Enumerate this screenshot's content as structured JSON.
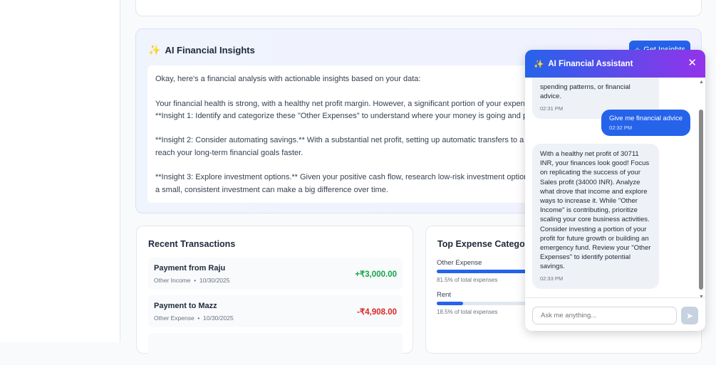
{
  "insights": {
    "title": "AI Financial Insights",
    "button": "Get Insights",
    "text": "Okay, here's a financial analysis with actionable insights based on your data:\n\nYour financial health is strong, with a healthy net profit margin. However, a significant portion of your expenses\n**Insight 1: Identify and categorize these \"Other Expenses\" to understand where your money is going and pinpo\n\n**Insight 2: Consider automating savings.** With a substantial net profit, setting up automatic transfers to a savi\nreach your long-term financial goals faster.\n\n**Insight 3: Explore investment options.** Given your positive cash flow, research low-risk investment options to\na small, consistent investment can make a big difference over time."
  },
  "transactions": {
    "title": "Recent Transactions",
    "items": [
      {
        "name": "Payment from Raju",
        "category": "Other Income",
        "date": "10/30/2025",
        "amount": "+₹3,000.00",
        "color": "#16a34a"
      },
      {
        "name": "Payment to Mazz",
        "category": "Other Expense",
        "date": "10/30/2025",
        "amount": "-₹4,908.00",
        "color": "#dc2626"
      }
    ]
  },
  "expenses": {
    "title": "Top Expense Categories",
    "items": [
      {
        "label": "Other Expense",
        "percent": 81.5,
        "caption": "81.5% of total expenses"
      },
      {
        "label": "Rent",
        "percent": 18.5,
        "caption": "18.5% of total expenses"
      }
    ]
  },
  "chat": {
    "title": "AI Financial Assistant",
    "messages": [
      {
        "role": "bot",
        "text": "spending patterns, or financial advice.",
        "time": "02:31 PM"
      },
      {
        "role": "user",
        "text": "Give me financial advice",
        "time": "02:32 PM"
      },
      {
        "role": "bot",
        "text": "With a healthy net profit of 30711 INR, your finances look good! Focus on replicating the success of your Sales profit (34000 INR). Analyze what drove that income and explore ways to increase it. While \"Other Income\" is contributing, prioritize scaling your core business activities. Consider investing a portion of your profit for future growth or building an emergency fund. Review your \"Other Expenses\" to identify potential savings.",
        "time": "02:33 PM"
      }
    ],
    "placeholder": "Ask me anything..."
  }
}
